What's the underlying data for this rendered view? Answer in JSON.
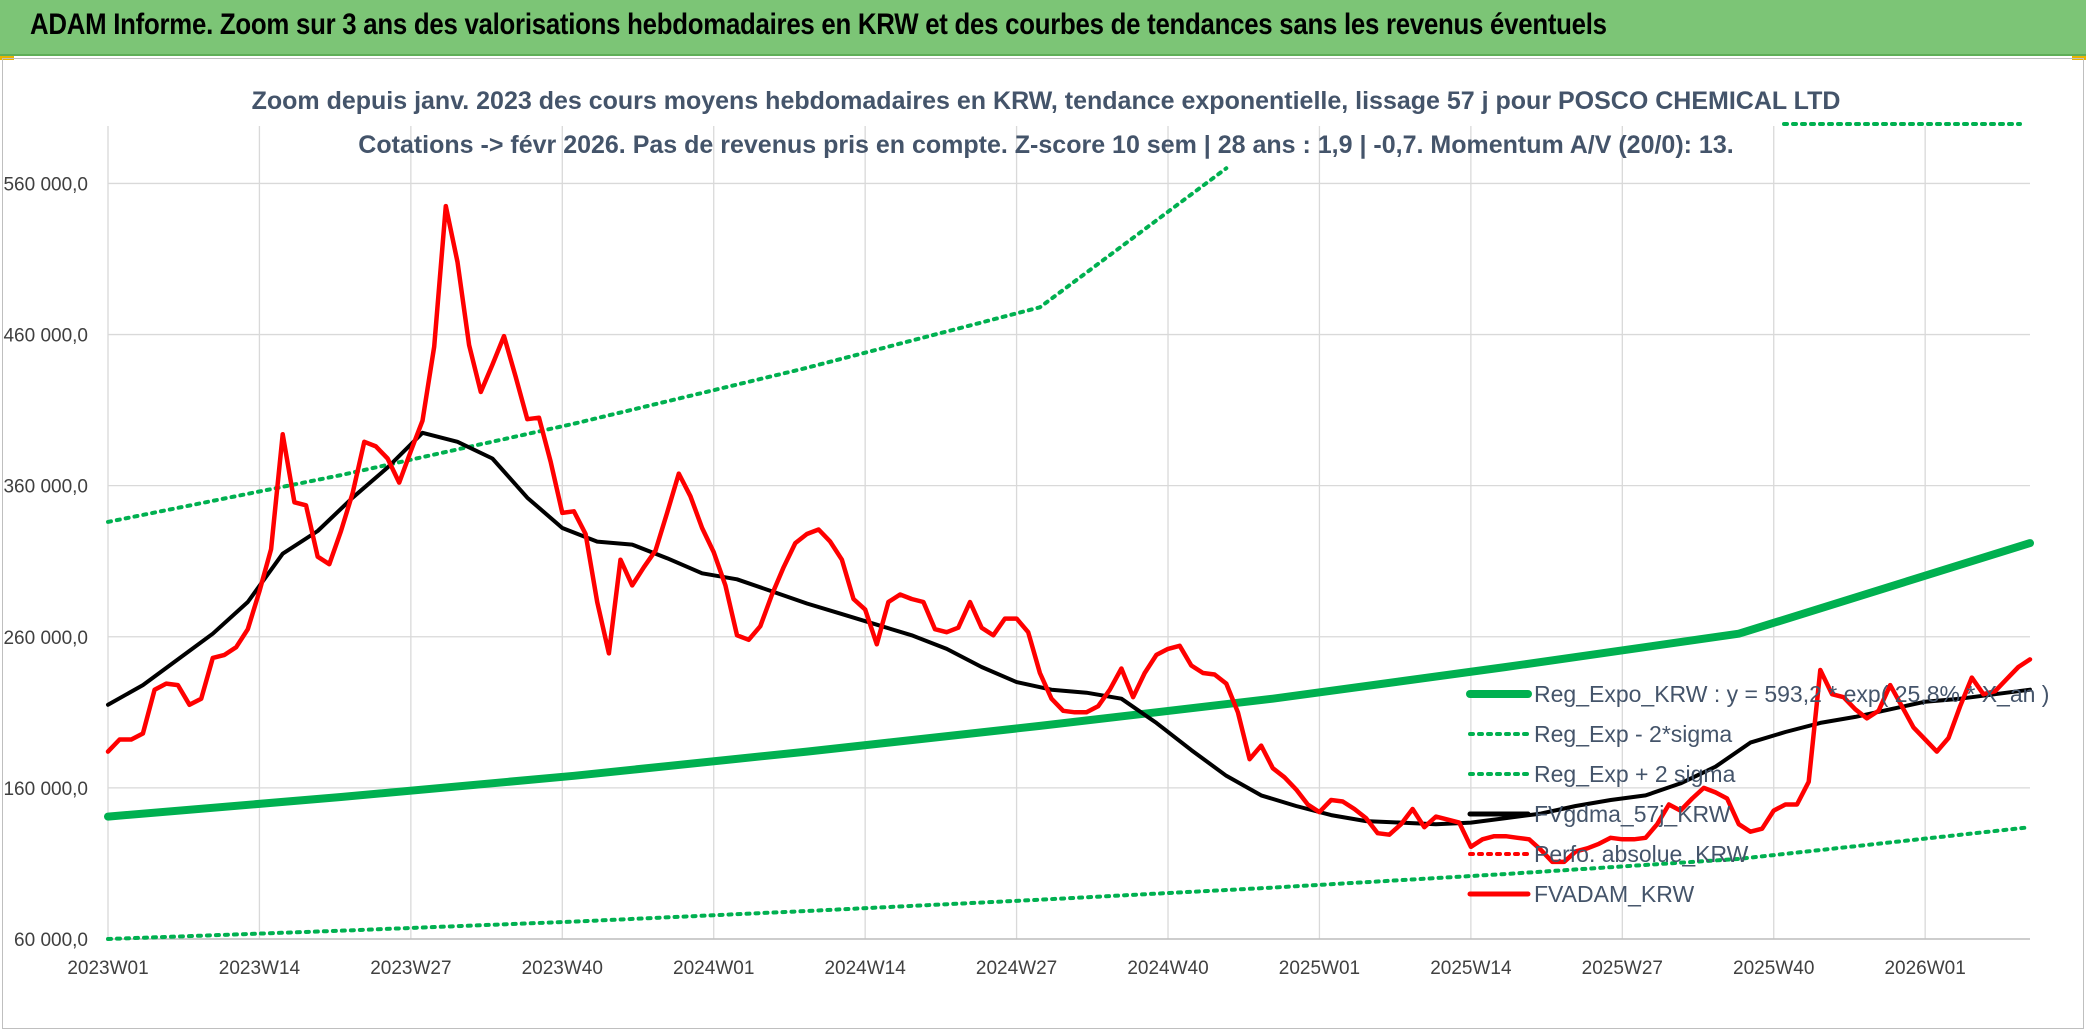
{
  "header": {
    "title": "ADAM Informe. Zoom sur 3 ans des valorisations hebdomadaires en KRW et des courbes de tendances sans les revenus éventuels"
  },
  "colors": {
    "banner": "#7cc576",
    "trend": "#00b050",
    "smooth": "#000000",
    "price": "#ff0000",
    "grid": "#d9d9d9",
    "text": "#44546a"
  },
  "chart_data": {
    "type": "line",
    "subtitle_lines": [
      "Zoom depuis janv. 2023 des cours moyens hebdomadaires en KRW, tendance exponentielle, lissage 57 j pour POSCO CHEMICAL LTD",
      "Cotations -> févr 2026. Pas de revenus pris en compte. Z-score 10 sem | 28 ans : 1,9 | -0,7. Momentum A/V (20/0): 13."
    ],
    "x_ticks": [
      "2023W01",
      "2023W14",
      "2023W27",
      "2023W40",
      "2024W01",
      "2024W14",
      "2024W27",
      "2024W40",
      "2025W01",
      "2025W14",
      "2025W27",
      "2025W40",
      "2026W01"
    ],
    "y_ticks": [
      "60 000,0",
      "160 000,0",
      "260 000,0",
      "360 000,0",
      "460 000,0",
      "560 000,0"
    ],
    "y_tick_values": [
      60000,
      160000,
      260000,
      360000,
      460000,
      560000
    ],
    "ylim": [
      60000,
      598000
    ],
    "x_range_weeks": [
      0,
      165
    ],
    "grid": true,
    "legend_position": "right",
    "legend": [
      {
        "name": "Reg_Expo_KRW : y = 593,2 * exp( 25,8% * X_an )",
        "style": "solid-thick",
        "color": "#00b050"
      },
      {
        "name": "Reg_Exp - 2*sigma",
        "style": "dotted",
        "color": "#00b050"
      },
      {
        "name": "Reg_Exp + 2 sigma",
        "style": "dotted",
        "color": "#00b050"
      },
      {
        "name": "FVgdma_57j_KRW",
        "style": "solid",
        "color": "#000000"
      },
      {
        "name": "Perfo. absolue_KRW",
        "style": "dotted",
        "color": "#ff0000"
      },
      {
        "name": "FVADAM_KRW",
        "style": "solid",
        "color": "#ff0000"
      }
    ],
    "series": [
      {
        "name": "Reg_Expo_KRW",
        "x": [
          0,
          20,
          40,
          60,
          80,
          100,
          120,
          140,
          165
        ],
        "y": [
          141000,
          154000,
          168000,
          184000,
          201000,
          219000,
          240000,
          262000,
          322000
        ]
      },
      {
        "name": "Reg_Exp - 2*sigma",
        "x": [
          0,
          20,
          40,
          60,
          80,
          100,
          120,
          140,
          165
        ],
        "y": [
          60000,
          65500,
          71500,
          78500,
          86000,
          94000,
          103000,
          113000,
          134000
        ]
      },
      {
        "name": "Reg_Exp + 2 sigma",
        "x": [
          0,
          20,
          40,
          60,
          80,
          96
        ],
        "y": [
          336000,
          367000,
          401000,
          438000,
          478000,
          570000
        ]
      },
      {
        "name": "FVgdma_57j_KRW",
        "x": [
          0,
          3,
          6,
          9,
          12,
          15,
          18,
          21,
          24,
          27,
          30,
          33,
          36,
          39,
          42,
          45,
          48,
          51,
          54,
          57,
          60,
          63,
          66,
          69,
          72,
          75,
          78,
          81,
          84,
          87,
          90,
          93,
          96,
          99,
          102,
          105,
          108,
          111,
          114,
          117,
          120,
          123,
          126,
          129,
          132,
          135,
          138,
          141,
          144,
          147,
          150,
          153,
          156,
          159,
          162,
          165
        ],
        "y": [
          215000,
          228000,
          245000,
          262000,
          283000,
          315000,
          330000,
          352000,
          372000,
          395000,
          389000,
          378000,
          352000,
          332000,
          323000,
          321000,
          312000,
          302000,
          298000,
          290000,
          282000,
          275000,
          268000,
          261000,
          252000,
          240000,
          230000,
          225000,
          223000,
          219000,
          203000,
          185000,
          168000,
          155000,
          148000,
          142000,
          138000,
          137000,
          136000,
          137000,
          140000,
          143000,
          148000,
          152000,
          155000,
          163000,
          174000,
          190000,
          197000,
          203000,
          207000,
          212000,
          217000,
          219000,
          222000,
          225000
        ]
      },
      {
        "name": "FVADAM_KRW",
        "x": [
          0,
          1,
          2,
          3,
          4,
          5,
          6,
          7,
          8,
          9,
          10,
          11,
          12,
          13,
          14,
          15,
          16,
          17,
          18,
          19,
          20,
          21,
          22,
          23,
          24,
          25,
          26,
          27,
          28,
          29,
          30,
          31,
          32,
          33,
          34,
          35,
          36,
          37,
          38,
          39,
          40,
          41,
          42,
          43,
          44,
          45,
          46,
          47,
          48,
          49,
          50,
          51,
          52,
          53,
          54,
          55,
          56,
          57,
          58,
          59,
          60,
          61,
          62,
          63,
          64,
          65,
          66,
          67,
          68,
          69,
          70,
          71,
          72,
          73,
          74,
          75,
          76,
          77,
          78,
          79,
          80,
          81,
          82,
          83,
          84,
          85,
          86,
          87,
          88,
          89,
          90,
          91,
          92,
          93,
          94,
          95,
          96,
          97,
          98,
          99,
          100,
          101,
          102,
          103,
          104,
          105,
          106,
          107,
          108,
          109,
          110,
          111,
          112,
          113,
          114,
          115,
          116,
          117,
          118,
          119,
          120,
          121,
          122,
          123,
          124,
          125,
          126,
          127,
          128,
          129,
          130,
          131,
          132,
          133,
          134,
          135,
          136,
          137,
          138,
          139,
          140,
          141,
          142,
          143,
          144,
          145,
          146,
          147,
          148,
          149,
          150,
          151,
          152,
          153,
          154,
          155,
          156,
          157,
          158,
          159,
          160,
          161,
          162,
          163,
          164,
          165
        ],
        "y": [
          184000,
          192000,
          192000,
          196000,
          225000,
          229000,
          228000,
          215000,
          219000,
          246000,
          248000,
          253000,
          265000,
          290000,
          318000,
          394000,
          349000,
          347000,
          313000,
          308000,
          330000,
          355000,
          389000,
          386000,
          378000,
          362000,
          383000,
          403000,
          452000,
          545000,
          508000,
          453000,
          422000,
          440000,
          459000,
          432000,
          404000,
          405000,
          376000,
          342000,
          343000,
          328000,
          283000,
          249000,
          311000,
          294000,
          306000,
          317000,
          342000,
          368000,
          353000,
          332000,
          316000,
          294000,
          261000,
          258000,
          267000,
          288000,
          306000,
          322000,
          328000,
          331000,
          323000,
          311000,
          285000,
          278000,
          255000,
          283000,
          288000,
          285000,
          283000,
          265000,
          263000,
          266000,
          283000,
          266000,
          261000,
          272000,
          272000,
          263000,
          236000,
          219000,
          211000,
          210000,
          210000,
          214000,
          225000,
          239000,
          220000,
          236000,
          248000,
          252000,
          254000,
          241000,
          236000,
          235000,
          229000,
          210000,
          179000,
          188000,
          173000,
          167000,
          159000,
          149000,
          144000,
          152000,
          151000,
          146000,
          140000,
          130000,
          129000,
          136000,
          146000,
          134000,
          141000,
          139000,
          137000,
          121000,
          126000,
          128000,
          128000,
          127000,
          126000,
          119000,
          111000,
          111000,
          118000,
          120000,
          123000,
          127000,
          126000,
          126000,
          127000,
          136000,
          149000,
          145000,
          153000,
          160000,
          157000,
          153000,
          136000,
          131000,
          133000,
          145000,
          149000,
          149000,
          164000,
          238000,
          222000,
          220000,
          212000,
          206000,
          211000,
          228000,
          214000,
          200000,
          192000,
          184000,
          193000,
          214000,
          233000,
          222000,
          224000,
          232000,
          240000,
          245000
        ]
      }
    ]
  }
}
